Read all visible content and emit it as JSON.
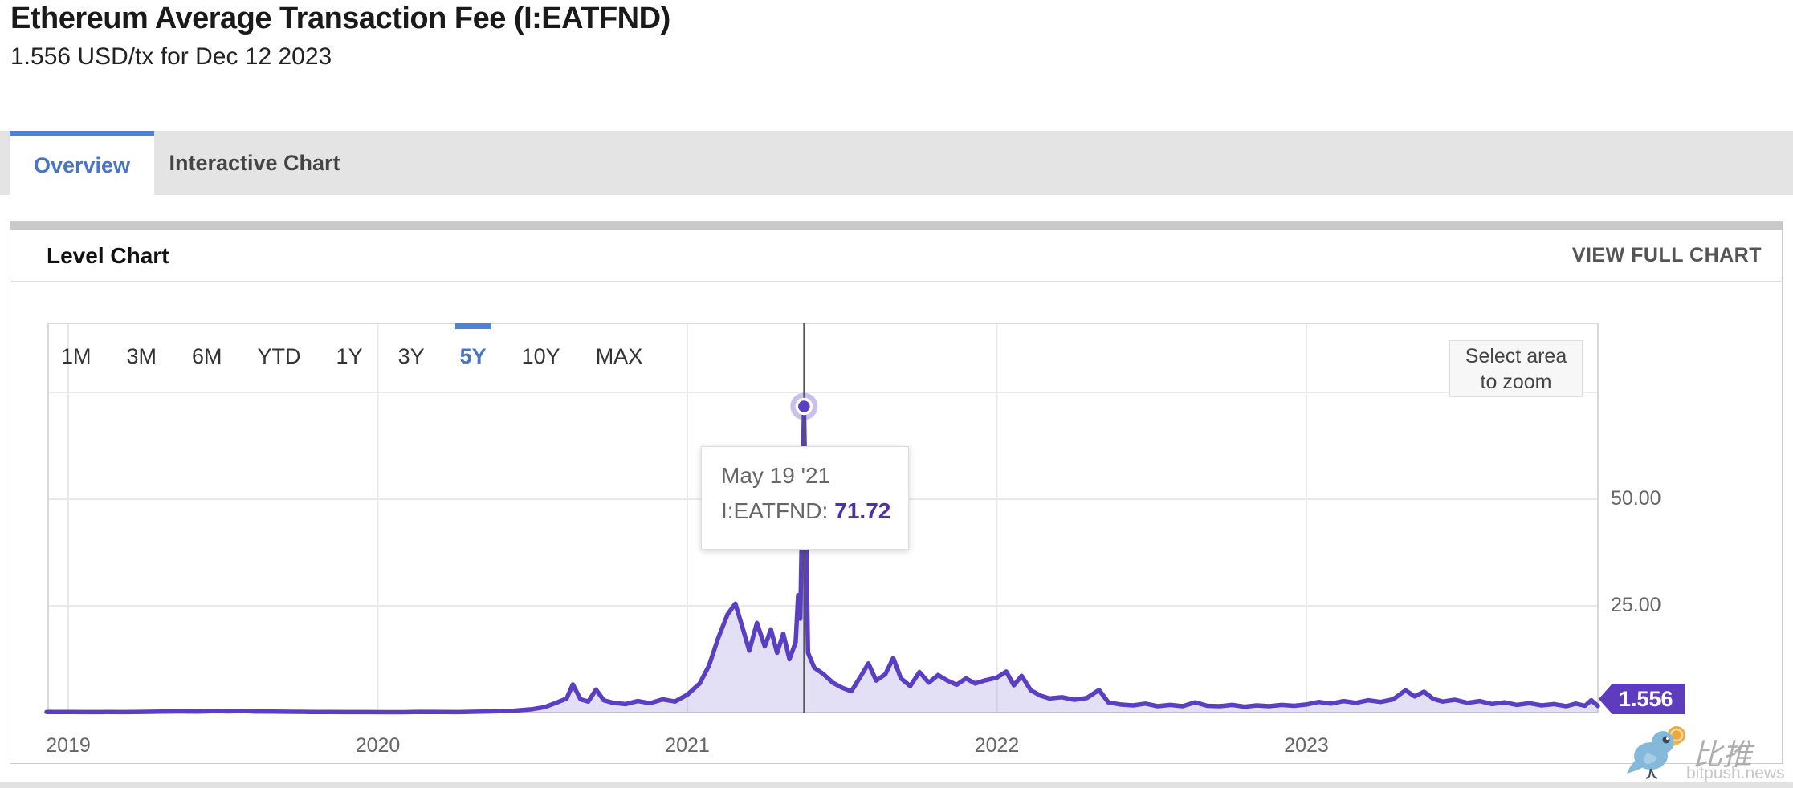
{
  "page": {
    "title": "Ethereum Average Transaction Fee (I:EATFND)",
    "subtitle": "1.556 USD/tx for Dec 12 2023"
  },
  "tabs": [
    {
      "label": "Overview",
      "active": true
    },
    {
      "label": "Interactive Chart",
      "active": false
    }
  ],
  "card": {
    "title": "Level Chart",
    "action": "VIEW FULL CHART"
  },
  "controls": {
    "ranges": [
      "1M",
      "3M",
      "6M",
      "YTD",
      "1Y",
      "3Y",
      "5Y",
      "10Y",
      "MAX"
    ],
    "active_range": "5Y",
    "zoom_hint_line1": "Select area",
    "zoom_hint_line2": "to zoom"
  },
  "tooltip": {
    "date": "May 19 '21",
    "series_label": "I:EATFND:",
    "value": "71.72"
  },
  "badge": {
    "value": "1.556"
  },
  "watermark": {
    "name": "比推",
    "domain": "bitpush.news",
    "icon": "bird-with-coin-icon"
  },
  "colors": {
    "line": "#5b3fc2",
    "area_fill": "rgba(91,63,194,0.17)",
    "accent_blue": "#4d82d6",
    "badge_bg": "#5e3cbe",
    "grid": "#e9e9e9",
    "plot_border": "#d8d8d8",
    "crosshair": "#555555"
  },
  "chart_data": {
    "type": "area",
    "title": "Level Chart",
    "series_name": "I:EATFND",
    "unit": "USD/tx",
    "xlabel": "",
    "ylabel": "",
    "xlim": [
      2018.93,
      2023.95
    ],
    "ylim": [
      0,
      91
    ],
    "grid": true,
    "x_ticks": [
      2019,
      2020,
      2021,
      2022,
      2023
    ],
    "x_tick_labels": [
      "2019",
      "2020",
      "2021",
      "2022",
      "2023"
    ],
    "y_ticks": [
      {
        "value": 25,
        "label": "25.00"
      },
      {
        "value": 50,
        "label": "50.00"
      }
    ],
    "y_grid_values": [
      25,
      50,
      75
    ],
    "highlight": {
      "x": 2021.377,
      "date": "May 19 '21",
      "value": 71.72
    },
    "last": {
      "date": "Dec 12 2023",
      "value": 1.556
    },
    "points": [
      [
        2018.93,
        0.15
      ],
      [
        2019.0,
        0.13
      ],
      [
        2019.06,
        0.12
      ],
      [
        2019.12,
        0.14
      ],
      [
        2019.18,
        0.12
      ],
      [
        2019.24,
        0.16
      ],
      [
        2019.3,
        0.22
      ],
      [
        2019.36,
        0.28
      ],
      [
        2019.42,
        0.24
      ],
      [
        2019.48,
        0.35
      ],
      [
        2019.52,
        0.28
      ],
      [
        2019.56,
        0.4
      ],
      [
        2019.6,
        0.26
      ],
      [
        2019.66,
        0.22
      ],
      [
        2019.72,
        0.18
      ],
      [
        2019.78,
        0.15
      ],
      [
        2019.84,
        0.13
      ],
      [
        2019.9,
        0.12
      ],
      [
        2019.96,
        0.11
      ],
      [
        2020.02,
        0.1
      ],
      [
        2020.08,
        0.09
      ],
      [
        2020.14,
        0.16
      ],
      [
        2020.2,
        0.13
      ],
      [
        2020.26,
        0.12
      ],
      [
        2020.32,
        0.2
      ],
      [
        2020.38,
        0.3
      ],
      [
        2020.44,
        0.45
      ],
      [
        2020.5,
        0.8
      ],
      [
        2020.54,
        1.3
      ],
      [
        2020.58,
        2.4
      ],
      [
        2020.61,
        3.3
      ],
      [
        2020.63,
        6.6
      ],
      [
        2020.655,
        3.1
      ],
      [
        2020.68,
        2.6
      ],
      [
        2020.705,
        5.4
      ],
      [
        2020.73,
        2.9
      ],
      [
        2020.76,
        2.3
      ],
      [
        2020.8,
        2.0
      ],
      [
        2020.84,
        2.7
      ],
      [
        2020.88,
        2.2
      ],
      [
        2020.92,
        3.1
      ],
      [
        2020.96,
        2.6
      ],
      [
        2021.0,
        4.2
      ],
      [
        2021.04,
        6.8
      ],
      [
        2021.07,
        11.0
      ],
      [
        2021.1,
        17.5
      ],
      [
        2021.13,
        23.0
      ],
      [
        2021.155,
        25.5
      ],
      [
        2021.18,
        19.5
      ],
      [
        2021.2,
        14.5
      ],
      [
        2021.225,
        21.0
      ],
      [
        2021.25,
        15.5
      ],
      [
        2021.27,
        19.5
      ],
      [
        2021.29,
        14.0
      ],
      [
        2021.31,
        18.5
      ],
      [
        2021.33,
        12.5
      ],
      [
        2021.35,
        16.5
      ],
      [
        2021.358,
        27.5
      ],
      [
        2021.365,
        22.0
      ],
      [
        2021.377,
        71.72
      ],
      [
        2021.39,
        14.0
      ],
      [
        2021.41,
        10.5
      ],
      [
        2021.44,
        9.0
      ],
      [
        2021.47,
        7.0
      ],
      [
        2021.5,
        5.8
      ],
      [
        2021.53,
        5.0
      ],
      [
        2021.56,
        8.5
      ],
      [
        2021.585,
        11.5
      ],
      [
        2021.61,
        7.5
      ],
      [
        2021.64,
        9.0
      ],
      [
        2021.665,
        12.8
      ],
      [
        2021.69,
        8.0
      ],
      [
        2021.72,
        6.2
      ],
      [
        2021.75,
        9.5
      ],
      [
        2021.78,
        7.0
      ],
      [
        2021.81,
        8.8
      ],
      [
        2021.84,
        7.5
      ],
      [
        2021.87,
        6.5
      ],
      [
        2021.9,
        8.0
      ],
      [
        2021.93,
        6.8
      ],
      [
        2021.96,
        7.5
      ],
      [
        2022.0,
        8.2
      ],
      [
        2022.03,
        9.6
      ],
      [
        2022.055,
        6.4
      ],
      [
        2022.08,
        8.6
      ],
      [
        2022.11,
        5.2
      ],
      [
        2022.14,
        4.0
      ],
      [
        2022.17,
        3.3
      ],
      [
        2022.21,
        3.6
      ],
      [
        2022.25,
        3.0
      ],
      [
        2022.29,
        3.4
      ],
      [
        2022.33,
        5.3
      ],
      [
        2022.36,
        2.4
      ],
      [
        2022.4,
        1.9
      ],
      [
        2022.44,
        1.7
      ],
      [
        2022.48,
        2.1
      ],
      [
        2022.52,
        1.5
      ],
      [
        2022.56,
        1.8
      ],
      [
        2022.6,
        1.5
      ],
      [
        2022.64,
        2.4
      ],
      [
        2022.68,
        1.6
      ],
      [
        2022.72,
        1.5
      ],
      [
        2022.76,
        1.8
      ],
      [
        2022.8,
        1.4
      ],
      [
        2022.84,
        1.7
      ],
      [
        2022.88,
        1.5
      ],
      [
        2022.92,
        1.8
      ],
      [
        2022.96,
        1.6
      ],
      [
        2023.0,
        1.9
      ],
      [
        2023.04,
        2.5
      ],
      [
        2023.08,
        2.1
      ],
      [
        2023.12,
        2.7
      ],
      [
        2023.16,
        2.3
      ],
      [
        2023.2,
        2.9
      ],
      [
        2023.24,
        2.5
      ],
      [
        2023.28,
        3.1
      ],
      [
        2023.32,
        5.2
      ],
      [
        2023.35,
        3.8
      ],
      [
        2023.38,
        4.9
      ],
      [
        2023.41,
        3.2
      ],
      [
        2023.44,
        2.6
      ],
      [
        2023.48,
        3.0
      ],
      [
        2023.52,
        2.3
      ],
      [
        2023.56,
        2.7
      ],
      [
        2023.6,
        2.0
      ],
      [
        2023.64,
        2.4
      ],
      [
        2023.68,
        1.8
      ],
      [
        2023.72,
        2.2
      ],
      [
        2023.76,
        1.7
      ],
      [
        2023.8,
        2.0
      ],
      [
        2023.84,
        1.5
      ],
      [
        2023.87,
        2.1
      ],
      [
        2023.9,
        1.6
      ],
      [
        2023.92,
        2.9
      ],
      [
        2023.945,
        1.556
      ]
    ]
  }
}
